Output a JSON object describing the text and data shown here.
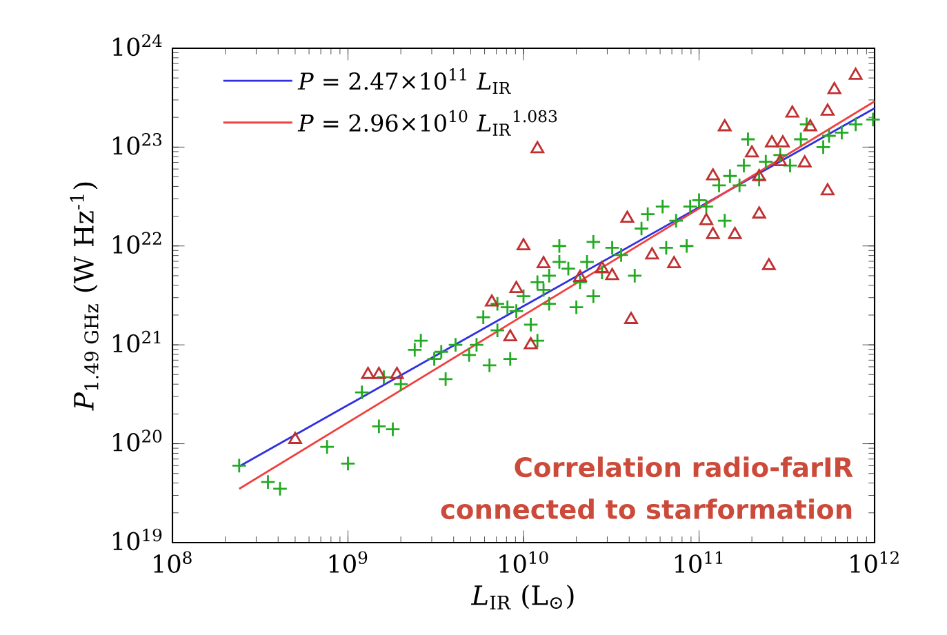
{
  "chart_data": {
    "type": "scatter",
    "xlabel": "*L*$_{IR}$ (L$_{⊙}$)",
    "ylabel": "*P*$_{1.49 GHz}$ (W Hz$^{-1}$)",
    "log": "xy",
    "xlim": [
      100000000.0,
      1000000000000.0
    ],
    "ylim": [
      1e+19,
      1e+24
    ],
    "xticks": [
      {
        "value": 100000000.0,
        "label": "10$^{8}$"
      },
      {
        "value": 1000000000.0,
        "label": "10$^{9}$"
      },
      {
        "value": 10000000000.0,
        "label": "10$^{10}$"
      },
      {
        "value": 100000000000.0,
        "label": "10$^{11}$"
      },
      {
        "value": 1000000000000.0,
        "label": "10$^{12}$"
      }
    ],
    "yticks": [
      {
        "value": 1e+19,
        "label": "10$^{19}$"
      },
      {
        "value": 1e+20,
        "label": "10$^{20}$"
      },
      {
        "value": 1e+21,
        "label": "10$^{21}$"
      },
      {
        "value": 1e+22,
        "label": "10$^{22}$"
      },
      {
        "value": 1e+23,
        "label": "10$^{23}$"
      },
      {
        "value": 1e+24,
        "label": "10$^{24}$"
      }
    ],
    "legend": "top left",
    "annotations": [
      "Correlation radio-farIR",
      "connected to starformation"
    ],
    "series": [
      {
        "marker": "cross",
        "color": "#22aa22",
        "x": [
          240000000.0,
          350000000.0,
          410000000.0,
          760000000.0,
          1000000000.0,
          1500000000.0,
          1800000000.0,
          1200000000.0,
          1600000000.0,
          2000000000.0,
          2400000000.0,
          2600000000.0,
          3100000000.0,
          3600000000.0,
          3400000000.0,
          4100000000.0,
          4900000000.0,
          5400000000.0,
          6400000000.0,
          7100000000.0,
          8400000000.0,
          8100000000.0,
          10000000000.0,
          11000000000.0,
          12000000000.0,
          13000000000.0,
          14000000000.0,
          16000000000.0,
          18000000000.0,
          21000000000.0,
          25000000000.0,
          20000000000.0,
          16000000000.0,
          25000000000.0,
          32000000000.0,
          36000000000.0,
          43000000000.0,
          47000000000.0,
          62000000000.0,
          65000000000.0,
          85000000000.0,
          89000000000.0,
          100000000000.0,
          130000000000.0,
          150000000000.0,
          170000000000.0,
          190000000000.0,
          240000000000.0,
          330000000000.0,
          380000000000.0,
          410000000000.0,
          510000000000.0,
          650000000000.0,
          980000000000.0,
          7100000000.0,
          9100000000.0,
          5900000000.0,
          14000000000.0,
          12000000000.0,
          23000000000.0,
          28000000000.0,
          51000000000.0,
          74000000000.0,
          110000000000.0,
          140000000000.0,
          180000000000.0,
          220000000000.0,
          290000000000.0,
          550000000000.0,
          780000000000.0
        ],
        "values": [
          6e+19,
          4.1e+19,
          3.5e+19,
          9.3e+19,
          6.3e+19,
          1.5e+20,
          1.4e+20,
          3.3e+20,
          4.7e+20,
          4e+20,
          8.9e+20,
          1.1e+21,
          7.2e+20,
          4.5e+20,
          8.5e+20,
          1e+21,
          7.9e+20,
          1e+21,
          6.2e+20,
          1.4e+21,
          7.2e+20,
          2.4e+21,
          3.1e+21,
          1.6e+21,
          1.1e+21,
          3.6e+21,
          5e+21,
          6.9e+21,
          5.9e+21,
          4.3e+21,
          3.1e+21,
          2.4e+21,
          1e+22,
          1.1e+22,
          9.6e+21,
          8.1e+21,
          5e+21,
          1.5e+22,
          2.5e+22,
          9.6e+21,
          1e+22,
          2.5e+22,
          2.9e+22,
          4.1e+22,
          5.1e+22,
          4.1e+22,
          1.2e+23,
          7.1e+22,
          6.5e+22,
          1.2e+23,
          1.7e+23,
          1e+23,
          1.4e+23,
          1.9e+23,
          2.6e+21,
          2.2e+21,
          1.9e+21,
          2.6e+21,
          4.3e+21,
          6.9e+21,
          5.4e+21,
          2.1e+22,
          1.8e+22,
          2.5e+22,
          1.8e+22,
          6.5e+22,
          4.7e+22,
          8.3e+22,
          1.3e+23,
          1.7e+23
        ]
      },
      {
        "marker": "triangle",
        "color": "#c03030",
        "x": [
          500000000.0,
          1300000000.0,
          1500000000.0,
          1900000000.0,
          6600000000.0,
          9100000000.0,
          10000000000.0,
          11000000000.0,
          13000000000.0,
          8400000000.0,
          12000000000.0,
          21000000000.0,
          28000000000.0,
          32000000000.0,
          39000000000.0,
          41000000000.0,
          54000000000.0,
          72000000000.0,
          120000000000.0,
          110000000000.0,
          120000000000.0,
          160000000000.0,
          140000000000.0,
          200000000000.0,
          260000000000.0,
          300000000000.0,
          250000000000.0,
          340000000000.0,
          400000000000.0,
          540000000000.0,
          540000000000.0,
          590000000000.0,
          780000000000.0,
          430000000000.0,
          220000000000.0,
          290000000000.0,
          220000000000.0
        ],
        "values": [
          1.1e+20,
          5e+20,
          5e+20,
          5e+20,
          2.7e+21,
          3.7e+21,
          1e+22,
          1e+21,
          6.6e+21,
          1.2e+21,
          9.6e+22,
          4.8e+21,
          5.9e+21,
          5e+21,
          1.9e+22,
          1.8e+21,
          8.1e+21,
          6.6e+21,
          5.1e+22,
          1.8e+22,
          1.3e+22,
          1.3e+22,
          1.6e+23,
          8.7e+22,
          1.1e+23,
          1.1e+23,
          6.3e+21,
          2.2e+23,
          6.9e+22,
          3.6e+22,
          2.3e+23,
          3.8e+23,
          5.3e+23,
          1.6e+23,
          5e+22,
          7.1e+22,
          2.1e+22
        ]
      },
      {
        "type": "line",
        "name": "*P* = 2.47×10$^{11}$ *L*$_{IR}$",
        "color": "#3030e0",
        "x": [
          240000000.0,
          1000000000000.0
        ],
        "values": [
          5.9e+19,
          2.47e+23
        ]
      },
      {
        "type": "line",
        "name": "*P* = 2.96×10$^{10}$ *L*$_{IR}$$^{1.083}$",
        "color": "#f04040",
        "x": [
          240000000.0,
          1000000000000.0
        ],
        "values": [
          3.5e+19,
          2.9e+23
        ]
      }
    ]
  }
}
